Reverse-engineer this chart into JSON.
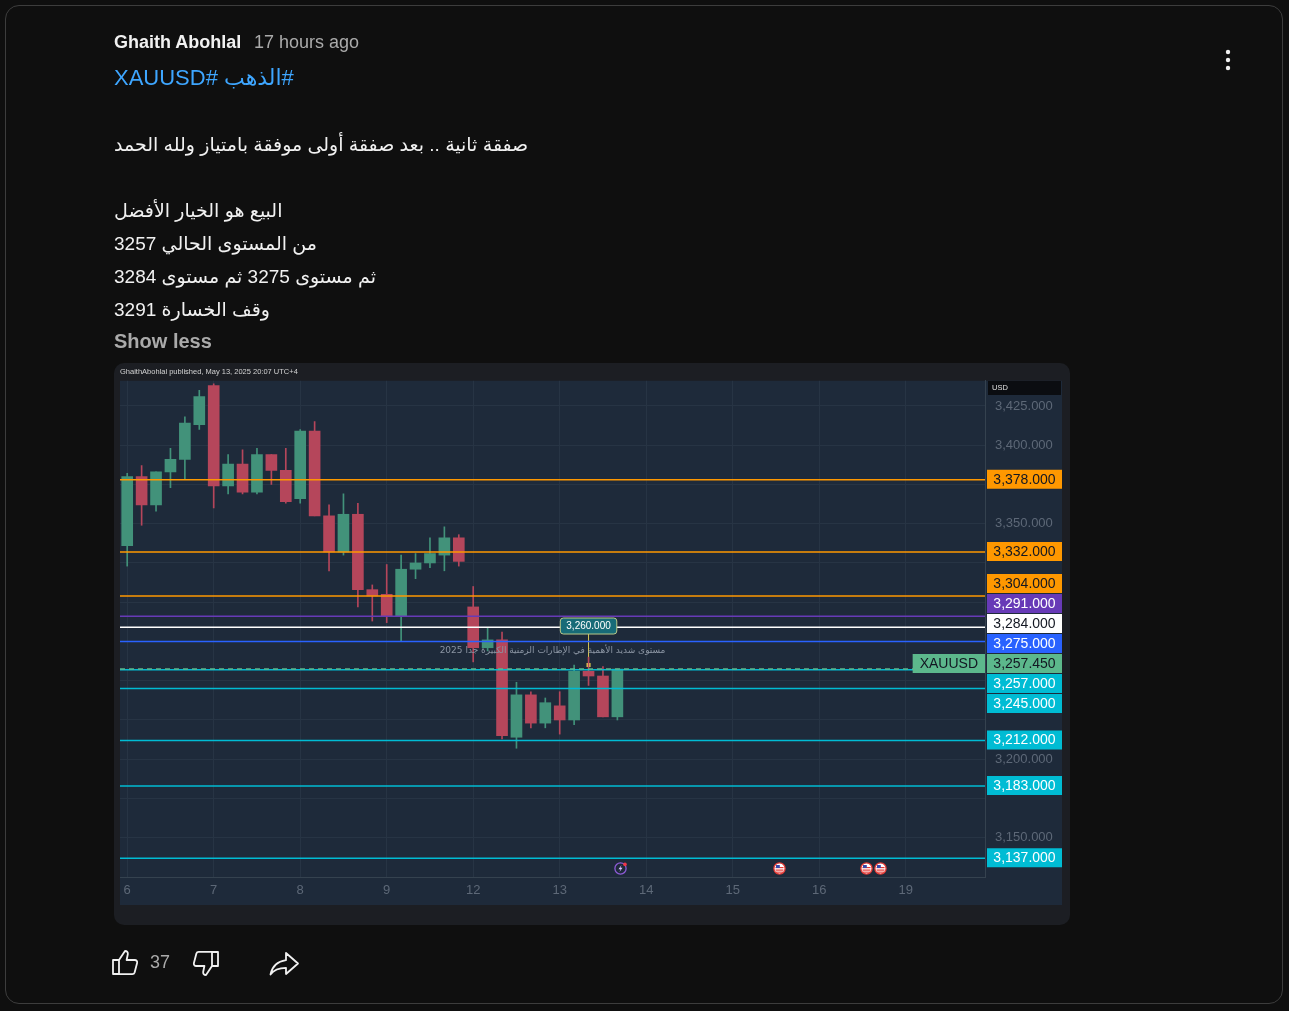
{
  "chart_data": {
    "type": "candlestick",
    "title": "#الذهب #XAUUSD",
    "subtitle": "صفقة ثانية .. بعد صفقة أولى موفقة بامتياز ولله الحمد\n\nالبيع هو الخيار الأفضل\nمن المستوى الحالي 3257\nثم مستوى 3275 ثم مستوى 3284\nوقف الخسارة 3291",
    "categories": [
      "6",
      null,
      null,
      null,
      null,
      null,
      "7",
      null,
      null,
      null,
      null,
      null,
      "8",
      null,
      null,
      null,
      null,
      null,
      "9",
      null,
      null,
      null,
      null,
      null,
      "12",
      null,
      null,
      null,
      null,
      null,
      "13",
      null,
      null,
      null,
      null,
      null,
      "14",
      null,
      null,
      null,
      null,
      null,
      "15",
      null,
      null,
      null,
      null,
      null,
      "16",
      null,
      null,
      null,
      null,
      null,
      "19",
      null,
      null,
      null,
      null,
      null
    ],
    "ohlc": [
      [
        3336,
        3382,
        3323,
        3380
      ],
      [
        3380,
        3387,
        3349,
        3362
      ],
      [
        3362,
        3383,
        3358,
        3383
      ],
      [
        3383,
        3398,
        3373,
        3391
      ],
      [
        3391,
        3418,
        3378,
        3414
      ],
      [
        3413,
        3435,
        3410,
        3431
      ],
      [
        3438,
        3439,
        3360,
        3374
      ],
      [
        3374,
        3394,
        3369,
        3388
      ],
      [
        3388,
        3397,
        3369,
        3370
      ],
      [
        3370,
        3398,
        3369,
        3394
      ],
      [
        3394,
        3394,
        3375,
        3384
      ],
      [
        3384,
        3398,
        3363,
        3364
      ],
      [
        3366,
        3410,
        3363,
        3409
      ],
      [
        3409,
        3415,
        3355,
        3355
      ],
      [
        3355,
        3362,
        3320,
        3332
      ],
      [
        3332,
        3369,
        3330,
        3356
      ],
      [
        3356,
        3363,
        3297,
        3308
      ],
      [
        3308,
        3311,
        3288,
        3304
      ],
      [
        3305,
        3324,
        3287,
        3291
      ],
      [
        3291,
        3330,
        3275,
        3321
      ],
      [
        3321,
        3331,
        3315,
        3325
      ],
      [
        3325,
        3341,
        3322,
        3331
      ],
      [
        3330,
        3348,
        3320,
        3341
      ],
      [
        3341,
        3343,
        3323,
        3326
      ],
      [
        3297,
        3310,
        3262,
        3271
      ],
      [
        3271,
        3284,
        3269,
        3276
      ],
      [
        3276,
        3281,
        3213,
        3215
      ],
      [
        3214,
        3249,
        3207,
        3241
      ],
      [
        3241,
        3243,
        3220,
        3223
      ],
      [
        3223,
        3239,
        3220,
        3236
      ],
      [
        3234,
        3243,
        3216,
        3225
      ],
      [
        3225,
        3260,
        3222,
        3256
      ],
      [
        3256,
        3265,
        3247,
        3253
      ],
      [
        3253,
        3259,
        3227,
        3227
      ],
      [
        3227,
        3257.45,
        3225,
        3257.45
      ],
      null,
      null,
      null,
      null,
      null,
      null,
      null,
      null,
      null,
      null,
      null,
      null,
      null,
      null,
      null,
      null,
      null,
      null,
      null,
      null,
      null,
      null,
      null,
      null,
      null
    ],
    "colors": [
      "#42927a",
      "#b5465b",
      "#42927a",
      "#42927a",
      "#42927a",
      "#42927a",
      "#b5465b",
      "#42927a",
      "#b5465b",
      "#42927a",
      "#b5465b",
      "#b5465b",
      "#42927a",
      "#b5465b",
      "#b5465b",
      "#42927a",
      "#b5465b",
      "#b5465b",
      "#b5465b",
      "#42927a",
      "#42927a",
      "#42927a",
      "#42927a",
      "#b5465b",
      "#b5465b",
      "#42927a",
      "#b5465b",
      "#42927a",
      "#b5465b",
      "#42927a",
      "#b5465b",
      "#42927a",
      "#b5465b",
      "#b5465b",
      "#42927a",
      null,
      null,
      null,
      null,
      null,
      null,
      null,
      null,
      null,
      null,
      null,
      null,
      null,
      null,
      null,
      null,
      null,
      null,
      null,
      null,
      null,
      null,
      null,
      null,
      null
    ],
    "ylim": [
      3125,
      3441
    ],
    "yticks": [
      {
        "value": 3425,
        "label": "3,425.000"
      },
      {
        "value": 3400,
        "label": "3,400.000"
      },
      {
        "value": 3375,
        "label": null
      },
      {
        "value": 3350,
        "label": "3,350.000"
      },
      {
        "value": 3325,
        "label": null
      },
      {
        "value": 3300,
        "label": null
      },
      {
        "value": 3275,
        "label": null
      },
      {
        "value": 3250,
        "label": null
      },
      {
        "value": 3225,
        "label": null
      },
      {
        "value": 3200,
        "label": "3,200.000"
      },
      {
        "value": 3175,
        "label": null
      },
      {
        "value": 3150,
        "label": "3,150.000"
      }
    ],
    "grid": true,
    "ref_lines": [
      {
        "axis": "y",
        "value": 3378,
        "label": "3,378.000",
        "color": "#ff9800"
      },
      {
        "axis": "y",
        "value": 3332,
        "label": "3,332.000",
        "color": "#ff9800"
      },
      {
        "axis": "y",
        "value": 3304,
        "label": "3,304.000",
        "color": "#ff9800"
      },
      {
        "axis": "y",
        "value": 3291,
        "label": "3,291.000",
        "color": "#673ab7"
      },
      {
        "axis": "y",
        "value": 3284,
        "label": "3,284.000",
        "color": "#ffffff"
      },
      {
        "axis": "y",
        "value": 3275,
        "label": "3,275.000",
        "color": "#2962ff"
      },
      {
        "axis": "y",
        "value": 3257.45,
        "label": "3,257.450",
        "color": "#5cb88c",
        "line_style": "dashed"
      },
      {
        "axis": "y",
        "value": 3257,
        "label": "3,257.000",
        "color": "#00bcd4"
      },
      {
        "axis": "y",
        "value": 3245,
        "label": "3,245.000",
        "color": "#00bcd4"
      },
      {
        "axis": "y",
        "value": 3212,
        "label": "3,212.000",
        "color": "#00bcd4"
      },
      {
        "axis": "y",
        "value": 3183,
        "label": "3,183.000",
        "color": "#00bcd4"
      },
      {
        "axis": "y",
        "value": 3137,
        "label": "3,137.000",
        "color": "#00bcd4"
      }
    ],
    "annotations": [
      "Ghaith Abohlal",
      "17 hours ago",
      "Show less",
      "GhaithAbohlal published, May 13, 2025 20:07 UTC+4",
      "USD",
      "37",
      {
        "text": "XAUUSD",
        "y": 3257.45
      },
      {
        "text": "3,260.000",
        "y": 3260
      },
      {
        "text": "مستوى شديد الأهمية في الإطارات الزمنية الكبيرة جدا 2025",
        "y": 3275
      }
    ]
  }
}
